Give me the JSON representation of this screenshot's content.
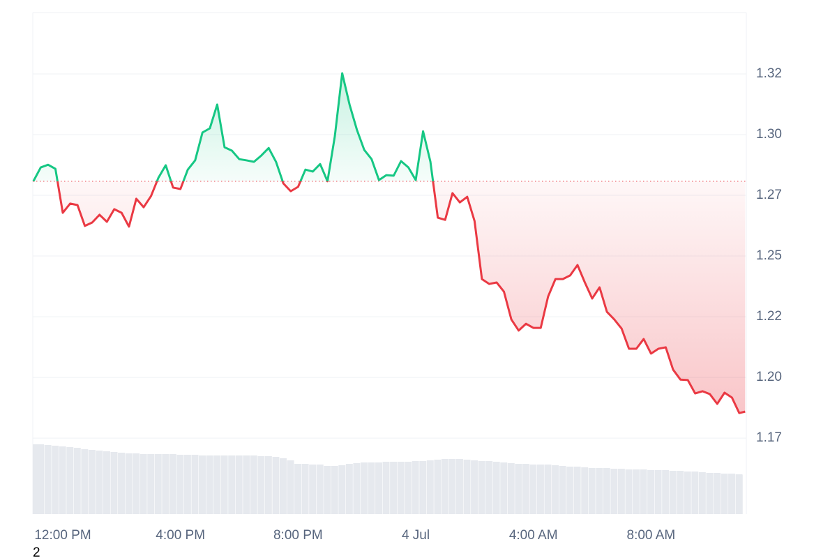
{
  "chart_data": {
    "type": "line",
    "x": [
      -1,
      -0.75,
      -0.5,
      -0.25,
      0,
      0.25,
      0.5,
      0.75,
      1,
      1.25,
      1.5,
      1.75,
      2,
      2.25,
      2.5,
      2.75,
      3,
      3.25,
      3.5,
      3.75,
      4,
      4.25,
      4.5,
      4.75,
      5,
      5.25,
      5.5,
      5.75,
      6,
      6.25,
      6.5,
      6.75,
      7,
      7.25,
      7.5,
      7.75,
      8,
      8.25,
      8.5,
      8.75,
      9,
      9.25,
      9.5,
      9.75,
      10,
      10.25,
      10.5,
      10.75,
      11,
      11.25,
      11.5,
      11.75,
      12,
      12.25,
      12.5,
      12.75,
      13,
      13.25,
      13.5,
      13.75,
      14,
      14.25,
      14.5,
      14.75,
      15,
      15.25,
      15.5,
      15.75,
      16,
      16.25,
      16.5,
      16.75,
      17,
      17.25,
      17.5,
      17.75,
      18,
      18.25,
      18.5,
      18.75,
      19,
      19.25,
      19.5,
      19.75,
      20,
      20.25,
      20.5,
      20.75,
      21,
      21.25,
      21.5,
      21.75,
      22,
      22.25,
      22.5,
      22.75,
      23,
      23.2
    ],
    "values": [
      1.2808,
      1.2865,
      1.2876,
      1.2859,
      1.2678,
      1.2716,
      1.271,
      1.2624,
      1.2638,
      1.267,
      1.2641,
      1.2693,
      1.2678,
      1.2621,
      1.2736,
      1.2701,
      1.2747,
      1.2822,
      1.2874,
      1.2782,
      1.2776,
      1.2856,
      1.2894,
      1.3009,
      1.3026,
      1.3124,
      1.2948,
      1.2934,
      1.2899,
      1.2894,
      1.2888,
      1.2914,
      1.2945,
      1.2888,
      1.2799,
      1.2767,
      1.2785,
      1.2856,
      1.2848,
      1.2879,
      1.2808,
      1.2994,
      1.3253,
      1.3124,
      1.302,
      1.2937,
      1.2899,
      1.2813,
      1.2833,
      1.2831,
      1.2891,
      1.2865,
      1.2813,
      1.3014,
      1.2888,
      1.2658,
      1.2649,
      1.2759,
      1.2721,
      1.2744,
      1.2644,
      1.2405,
      1.2385,
      1.2391,
      1.2353,
      1.2239,
      1.2193,
      1.2221,
      1.2204,
      1.2204,
      1.2333,
      1.2405,
      1.2405,
      1.242,
      1.2463,
      1.2391,
      1.2325,
      1.2371,
      1.227,
      1.2239,
      1.2201,
      1.2118,
      1.2118,
      1.2158,
      1.2098,
      1.2118,
      1.2124,
      1.2032,
      1.1991,
      1.1989,
      1.1934,
      1.1943,
      1.1931,
      1.1891,
      1.1937,
      1.1917,
      1.1853,
      1.1859
    ],
    "volume": [
      100,
      100,
      99,
      98,
      97,
      96,
      95,
      93,
      92,
      91,
      90,
      89,
      88,
      87,
      87,
      86,
      86,
      86,
      86,
      86,
      85,
      85,
      85,
      84,
      84,
      84,
      84,
      84,
      84,
      84,
      84,
      83,
      83,
      82,
      80,
      77,
      72,
      72,
      71,
      71,
      69,
      69,
      70,
      72,
      73,
      74,
      74,
      74,
      75,
      75,
      75,
      75,
      76,
      76,
      77,
      78,
      79,
      79,
      79,
      78,
      77,
      76,
      76,
      75,
      74,
      73,
      72,
      72,
      71,
      71,
      71,
      70,
      69,
      68,
      68,
      67,
      66,
      66,
      66,
      65,
      65,
      64,
      64,
      64,
      63,
      63,
      63,
      62,
      62,
      61,
      61,
      60,
      59,
      59,
      58,
      58,
      57,
      56
    ],
    "baseline": 1.2808,
    "up_color": "#16c784",
    "down_color": "#ea3943",
    "volume_color": "#e6e9ee",
    "xlim": [
      -1.02,
      23.24
    ],
    "xticks": [
      {
        "value": 0,
        "label": "12:00 PM"
      },
      {
        "value": 4,
        "label": "4:00 PM"
      },
      {
        "value": 8,
        "label": "8:00 PM"
      },
      {
        "value": 12,
        "label": "4 Jul"
      },
      {
        "value": 16,
        "label": "4:00 AM"
      },
      {
        "value": 20,
        "label": "8:00 AM"
      }
    ],
    "ylim": [
      1.1437,
      1.3503
    ],
    "yticks": [
      {
        "value": 1.175,
        "label": "1.17"
      },
      {
        "value": 1.2,
        "label": "1.20"
      },
      {
        "value": 1.225,
        "label": "1.22"
      },
      1.25,
      {
        "value": 1.275,
        "label": "1.27"
      },
      {
        "value": 1.3,
        "label": "1.30"
      },
      {
        "value": 1.325,
        "label": "1.32"
      }
    ],
    "grid": true
  },
  "footnote": "2"
}
